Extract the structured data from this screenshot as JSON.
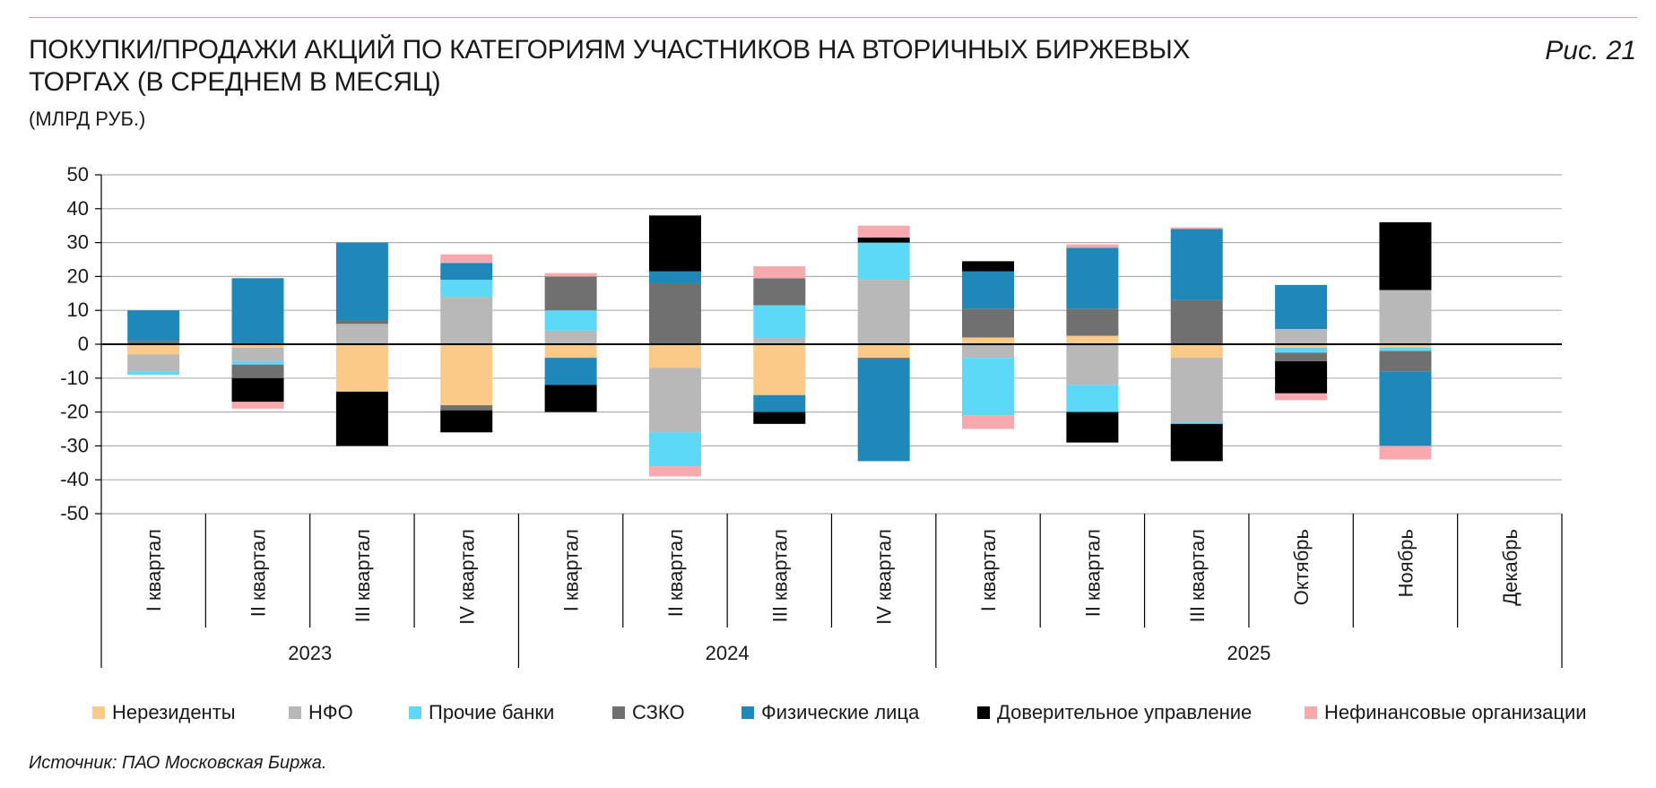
{
  "header": {
    "title": "ПОКУПКИ/ПРОДАЖИ АКЦИЙ ПО КАТЕГОРИЯМ УЧАСТНИКОВ НА ВТОРИЧНЫХ БИРЖЕВЫХ ТОРГАХ (В СРЕДНЕМ В МЕСЯЦ)",
    "subtitle": "(МЛРД РУБ.)",
    "figure_label": "Рис. 21"
  },
  "source": "Источник: ПАО Московская Биржа.",
  "colors": {
    "top_rule": "#c9a3a8",
    "grid": "#b0b0b0",
    "axis": "#000000"
  },
  "chart_data": {
    "type": "bar",
    "stacked": true,
    "title": "ПОКУПКИ/ПРОДАЖИ АКЦИЙ ПО КАТЕГОРИЯМ УЧАСТНИКОВ НА ВТОРИЧНЫХ БИРЖЕВЫХ ТОРГАХ (В СРЕДНЕМ В МЕСЯЦ)",
    "ylabel": "(МЛРД РУБ.)",
    "ylim": [
      -50,
      50
    ],
    "yticks": [
      50,
      40,
      30,
      20,
      10,
      0,
      -10,
      -20,
      -30,
      -40,
      -50
    ],
    "grid": true,
    "legend_position": "bottom",
    "categories": [
      "I квартал",
      "II квартал",
      "III квартал",
      "IV квартал",
      "I квартал",
      "II квартал",
      "III квартал",
      "IV квартал",
      "I квартал",
      "II квартал",
      "III квартал",
      "Октябрь",
      "Ноябрь",
      "Декабрь"
    ],
    "groups": [
      {
        "label": "2023",
        "start": 0,
        "end": 3
      },
      {
        "label": "2024",
        "start": 4,
        "end": 7
      },
      {
        "label": "2025",
        "start": 8,
        "end": 13
      }
    ],
    "series": [
      {
        "name": "Нерезиденты",
        "color": "#fcca88",
        "values": [
          -3,
          -1,
          -14,
          -18,
          -4,
          -7,
          -15,
          -4,
          2,
          2.5,
          -4,
          -1,
          -1,
          0
        ]
      },
      {
        "name": "НФО",
        "color": "#b8b8b8",
        "values": [
          -5,
          -4,
          6,
          14,
          4,
          -19,
          2,
          19,
          -4,
          -12,
          -19,
          4.5,
          16,
          0
        ]
      },
      {
        "name": "Прочие банки",
        "color": "#5dd9f7",
        "values": [
          -1,
          -1,
          0,
          5,
          6,
          -10,
          9.5,
          11,
          -17,
          -8,
          -0.5,
          -1.5,
          -1,
          0
        ]
      },
      {
        "name": "СЗКО",
        "color": "#707070",
        "values": [
          1,
          -4,
          1,
          -1.5,
          10,
          18,
          8,
          -0.5,
          8.5,
          8,
          13,
          -2.5,
          -6,
          0
        ]
      },
      {
        "name": "Физические лица",
        "color": "#1e88b8",
        "values": [
          9,
          19.5,
          23,
          5,
          -8,
          3.5,
          -5,
          -30,
          11,
          18,
          21,
          13,
          -22,
          0
        ]
      },
      {
        "name": "Доверительное управление",
        "color": "#000000",
        "values": [
          0,
          -7,
          -16,
          -6.5,
          -8,
          16.5,
          -3.5,
          1.5,
          3,
          -9,
          -11,
          -9.5,
          20,
          0
        ]
      },
      {
        "name": "Нефинансовые организации",
        "color": "#f8a9ad",
        "values": [
          0,
          -2,
          0,
          2.5,
          1,
          -3,
          3.5,
          3.5,
          -4,
          1,
          0.5,
          -2,
          -4,
          0
        ]
      }
    ]
  }
}
